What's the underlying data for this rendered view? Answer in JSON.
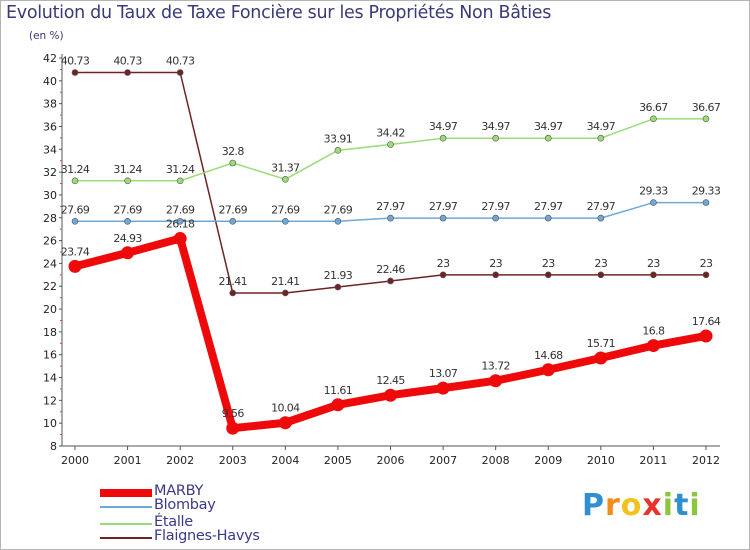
{
  "title": "Evolution du Taux de Taxe Foncière sur les Propriétés Non Bâties",
  "subtitle": "(en %)",
  "logo": {
    "letters": [
      "P",
      "r",
      "o",
      "x",
      "i",
      "t",
      "i"
    ],
    "colors": [
      "#2f8fcf",
      "#f28a1c",
      "#f2c21c",
      "#e8322b",
      "#8cc63f",
      "#2f8fcf",
      "#8cc63f"
    ]
  },
  "chart_data": {
    "type": "line",
    "title": "Evolution du Taux de Taxe Foncière sur les Propriétés Non Bâties",
    "ylabel": "(en %)",
    "xlabel": "",
    "x": [
      "2000",
      "2001",
      "2002",
      "2003",
      "2004",
      "2005",
      "2006",
      "2007",
      "2008",
      "2009",
      "2010",
      "2011",
      "2012"
    ],
    "ylim": [
      8,
      42
    ],
    "yticks": [
      8,
      10,
      12,
      14,
      16,
      18,
      20,
      22,
      24,
      26,
      28,
      30,
      32,
      34,
      36,
      38,
      40,
      42
    ],
    "series": [
      {
        "name": "Flaignes-Havys",
        "color": "#6e2424",
        "labels": [
          "40.73",
          "40.73",
          "40.73",
          "21.41",
          "21.41",
          "21.93",
          "22.46",
          "23",
          "23",
          "23",
          "23",
          "23",
          "23"
        ],
        "values": [
          40.73,
          40.73,
          40.73,
          21.41,
          21.41,
          21.93,
          22.46,
          23,
          23,
          23,
          23,
          23,
          23
        ]
      },
      {
        "name": "Étalle",
        "color": "#9bdc78",
        "labels": [
          "31.24",
          "31.24",
          "31.24",
          "32.8",
          "31.37",
          "33.91",
          "34.42",
          "34.97",
          "34.97",
          "34.97",
          "34.97",
          "36.67",
          "36.67"
        ],
        "values": [
          31.24,
          31.24,
          31.24,
          32.8,
          31.37,
          33.91,
          34.42,
          34.97,
          34.97,
          34.97,
          34.97,
          36.67,
          36.67
        ]
      },
      {
        "name": "Blombay",
        "color": "#6fa8d6",
        "labels": [
          "27.69",
          "27.69",
          "27.69",
          "27.69",
          "27.69",
          "27.69",
          "27.97",
          "27.97",
          "27.97",
          "27.97",
          "27.97",
          "29.33",
          "29.33"
        ],
        "values": [
          27.69,
          27.69,
          27.69,
          27.69,
          27.69,
          27.69,
          27.97,
          27.97,
          27.97,
          27.97,
          27.97,
          29.33,
          29.33
        ]
      },
      {
        "name": "MARBY",
        "color": "#ee0a0a",
        "labels": [
          "23.74",
          "24.93",
          "26.18",
          "9.56",
          "10.04",
          "11.61",
          "12.45",
          "13.07",
          "13.72",
          "14.68",
          "15.71",
          "16.8",
          "17.64"
        ],
        "values": [
          23.74,
          24.93,
          26.18,
          9.56,
          10.04,
          11.61,
          12.45,
          13.07,
          13.72,
          14.68,
          15.71,
          16.8,
          17.64
        ]
      }
    ],
    "legend": [
      "MARBY",
      "Blombay",
      "Étalle",
      "Flaignes-Havys"
    ],
    "legend_position": "bottom-left",
    "grid": false
  }
}
